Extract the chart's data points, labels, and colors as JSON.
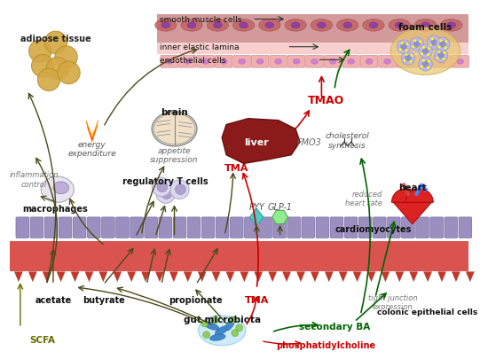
{
  "bg_color": "#ffffff",
  "arrow_color_dark": "#4a4a1a",
  "arrow_color_red": "#cc0000",
  "arrow_color_green": "#006400",
  "text_color_olive": "#6b6b00",
  "labels": {
    "adipose_tissue": "adipose tissue",
    "energy_expenditure": "energy\nexpenditure",
    "brain": "brain",
    "appetite_suppression": "appetite\nsuppression",
    "inflammation_control": "inflammation\ncontrol",
    "macrophages": "macrophages",
    "regulatory_t_cells": "regulatory T cells",
    "liver": "liver",
    "TMA_red1": "TMA",
    "FMO3": "FMO3",
    "TMAO": "TMAO",
    "cholesterol_synthesis": "cholesterol\nsynthesis",
    "foam_cells": "foam cells",
    "reduced_heart_rate": "reduced\nheart rate",
    "cardiomyocytes": "cardiomyocytes",
    "heart": "heart",
    "smooth_muscle_cells": "smooth muscle cells",
    "inner_elastic_lamina": "inner elastic lamina",
    "endothelial_cells": "endothelial cells",
    "PYY": "PYY",
    "GLP1": "GLP-1",
    "acetate": "acetate",
    "butyrate": "butyrate",
    "propionate": "propionate",
    "TMA_red2": "TMA",
    "secondary_BA": "secondary BA",
    "phosphatidylcholine": "phosphatidylcholine",
    "gut_microbiota": "gut microbiota",
    "SCFA": "SCFA",
    "tight_junction": "tight junction\nexpression",
    "colonic_epithelial": "colonic epithelial cells"
  }
}
